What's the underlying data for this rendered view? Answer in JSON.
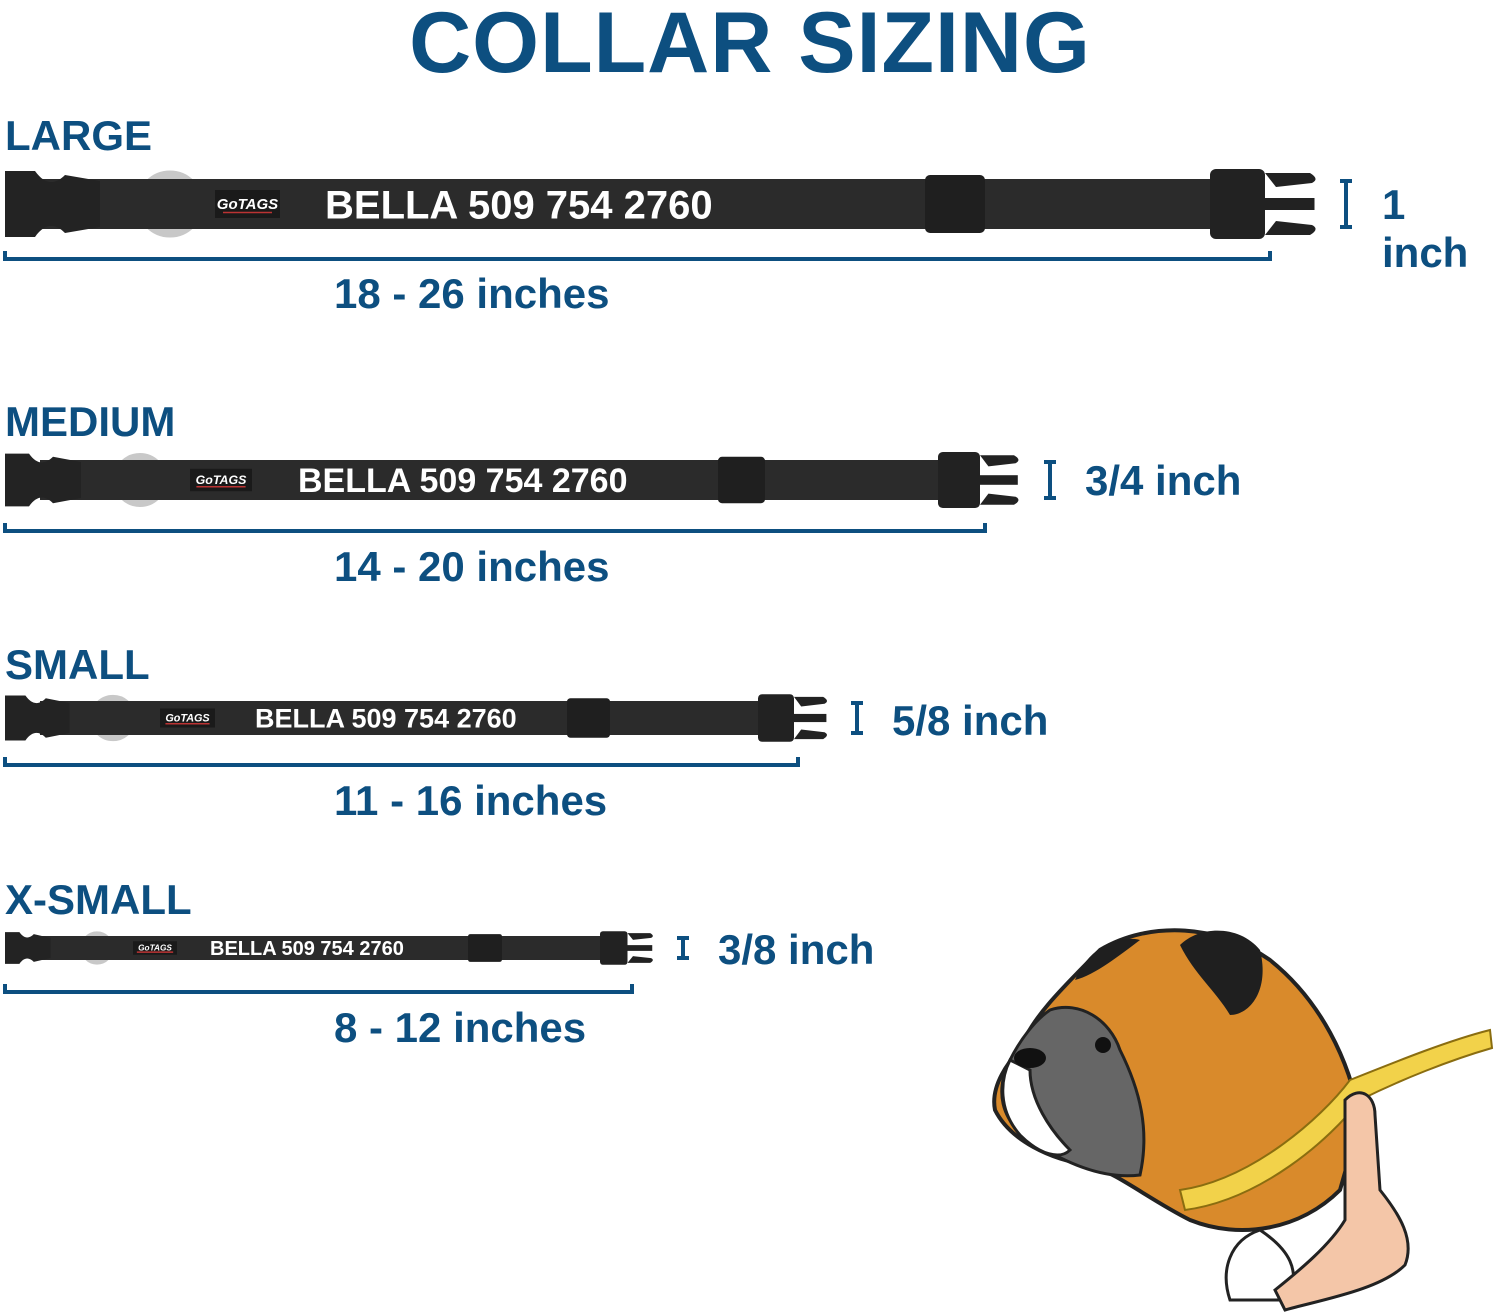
{
  "title": "COLLAR SIZING",
  "colors": {
    "accent": "#0d4f80",
    "strap": "#2b2b2b",
    "ring": "#c8c8c8",
    "name_text": "#ffffff"
  },
  "sizes": [
    {
      "label": "LARGE",
      "name_text": "BELLA 509 754 2760",
      "logo": "GoTAGS",
      "width": "1 inch",
      "range": "18 - 26 inches"
    },
    {
      "label": "MEDIUM",
      "name_text": "BELLA 509 754 2760",
      "logo": "GoTAGS",
      "width": "3/4 inch",
      "range": "14 - 20 inches"
    },
    {
      "label": "SMALL",
      "name_text": "BELLA 509 754 2760",
      "logo": "GoTAGS",
      "width": "5/8 inch",
      "range": "11 - 16 inches"
    },
    {
      "label": "X-SMALL",
      "name_text": "BELLA 509 754 2760",
      "logo": "GoTAGS",
      "width": "3/8 inch",
      "range": "8 - 12 inches"
    }
  ],
  "illustration": {
    "subject": "boxer dog being measured with tape measure"
  }
}
